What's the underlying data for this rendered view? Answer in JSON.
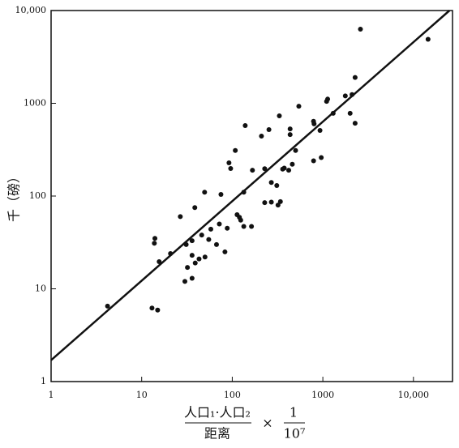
{
  "chart_data": {
    "type": "scatter",
    "log_x": true,
    "log_y": true,
    "color": "#111",
    "x_label": {
      "numerator": "人口₁·人口₂",
      "denominator": "距离",
      "times": "×",
      "factor_numerator": "1",
      "factor_denominator": "10⁷"
    },
    "y_label": "千（磅）",
    "xlim": [
      1,
      27000
    ],
    "ylim": [
      1,
      10000
    ],
    "xticks": [
      1,
      10,
      100,
      1000,
      {
        "value": 10000,
        "label": "10,000"
      }
    ],
    "yticks": [
      1,
      10,
      100,
      1000,
      {
        "value": 10000,
        "label": "10,000"
      }
    ],
    "fit_line": {
      "x": [
        1,
        25000
      ],
      "y": [
        1.7,
        10000
      ]
    },
    "x": [
      4.2,
      13,
      15,
      13.8,
      14,
      20.8,
      26.7,
      38.6,
      49.5,
      75,
      92,
      96,
      108,
      139,
      134,
      210,
      254,
      167,
      228,
      331,
      435,
      435,
      543,
      789,
      800,
      930,
      1100,
      1130,
      960,
      790,
      1300,
      1770,
      2100,
      2000,
      2270,
      2270,
      2600,
      14500,
      360,
      375,
      420,
      460,
      500,
      270,
      228,
      270,
      320,
      340,
      310,
      120,
      113,
      124,
      134,
      163,
      72,
      58,
      55,
      67,
      46,
      36,
      31,
      36,
      39,
      43,
      50,
      32,
      36,
      30,
      83,
      88,
      15.6
    ],
    "y": [
      6.5,
      6.2,
      5.9,
      31,
      35,
      24,
      60,
      75,
      110,
      104,
      228,
      198,
      310,
      575,
      110,
      443,
      520,
      190,
      197,
      733,
      530,
      460,
      930,
      640,
      600,
      510,
      1050,
      1110,
      260,
      240,
      780,
      1200,
      1240,
      780,
      610,
      1900,
      6300,
      4900,
      195,
      200,
      190,
      220,
      310,
      140,
      85,
      86,
      80,
      87,
      130,
      59,
      63,
      55,
      47,
      47,
      50,
      44,
      34,
      30,
      38,
      33,
      30,
      23,
      19,
      21,
      22,
      17,
      13,
      12,
      25,
      45,
      19.6
    ]
  }
}
